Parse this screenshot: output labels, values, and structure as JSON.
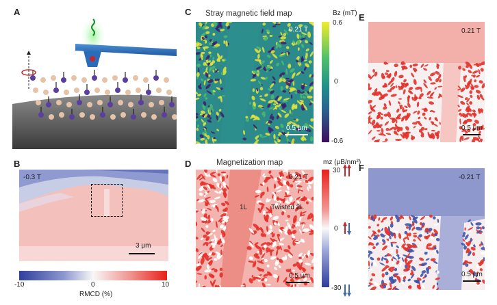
{
  "panels": {
    "A": {
      "letter": "A"
    },
    "B": {
      "letter": "B",
      "field": "-0.3 T",
      "scale": "3 μm",
      "colorbar": {
        "min": "-10",
        "mid": "0",
        "max": "10",
        "label": "RMCD (%)"
      }
    },
    "C": {
      "letter": "C",
      "title": "Stray magnetic field map",
      "field": "0.21 T",
      "scale": "0.5 μm",
      "cb_label": "Bz (mT)",
      "cb_ticks": [
        "0.6",
        "0",
        "-0.6"
      ]
    },
    "D": {
      "letter": "D",
      "title": "Magnetization map",
      "field": "0.21 T",
      "scale": "0.5 μm",
      "cb_label": "mz (μB/nm²)",
      "cb_ticks": [
        "30",
        "0",
        "-30"
      ],
      "region1": "1L",
      "region2": "Twisted 2L"
    },
    "E": {
      "letter": "E",
      "field": "0.21 T",
      "scale": "0.5 μm"
    },
    "F": {
      "letter": "F",
      "field": "-0.21 T",
      "scale": "0.5 μm"
    }
  },
  "colors": {
    "red": "#e8423d",
    "blue": "#3b4fa8",
    "teal": "#1f8a8a",
    "yellow": "#e6e62a",
    "purple": "#3f1b6b"
  }
}
